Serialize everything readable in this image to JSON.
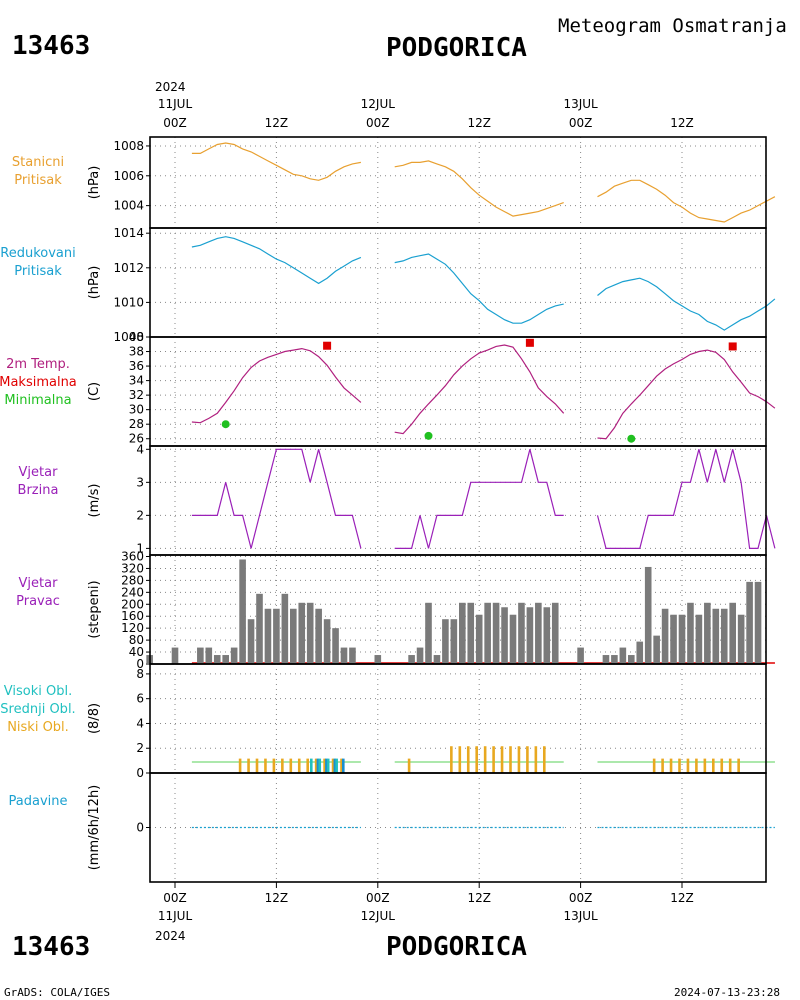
{
  "header": {
    "station_id": "13463",
    "station_name": "PODGORICA",
    "product": "Meteogram Osmatranja"
  },
  "top_axis": {
    "year": "2024",
    "labels": [
      {
        "top": "11JUL",
        "bottom": "00Z"
      },
      {
        "top": "",
        "bottom": "12Z"
      },
      {
        "top": "12JUL",
        "bottom": "00Z"
      },
      {
        "top": "",
        "bottom": "12Z"
      },
      {
        "top": "13JUL",
        "bottom": "00Z"
      },
      {
        "top": "",
        "bottom": "12Z"
      }
    ]
  },
  "bottom_axis": {
    "year": "2024",
    "labels": [
      {
        "top": "00Z",
        "bottom": "11JUL"
      },
      {
        "top": "12Z",
        "bottom": ""
      },
      {
        "top": "00Z",
        "bottom": "12JUL"
      },
      {
        "top": "12Z",
        "bottom": ""
      },
      {
        "top": "00Z",
        "bottom": "13JUL"
      },
      {
        "top": "12Z",
        "bottom": ""
      }
    ]
  },
  "footer": {
    "station_id": "13463",
    "station_name": "PODGORICA",
    "credit": "GrADS: COLA/IGES",
    "timestamp": "2024-07-13-23:28"
  },
  "colors": {
    "station_pressure": "#e8a030",
    "reduced_pressure": "#1aa0d0",
    "temperature": "#b0207f",
    "tmax": "#e00000",
    "tmin": "#20c020",
    "wind": "#9a20b8",
    "wind_bar": "#7a7a7a",
    "high_cloud": "#20c0c0",
    "mid_cloud": "#1a8fd0",
    "low_cloud": "#e8a820",
    "precip": "#1aa0d0"
  },
  "chart_data": [
    {
      "type": "line",
      "panel": "station_pressure",
      "label_lines": [
        "Stanicni",
        "Pritisak"
      ],
      "ylabel": "(hPa)",
      "ylim": [
        1002.5,
        1008.6
      ],
      "yticks": [
        "1004",
        "1006",
        "1008"
      ],
      "x_unit": "hours since 11JUL 00Z",
      "series": [
        {
          "x": [
            2,
            3,
            4,
            5,
            6,
            7,
            8,
            9,
            10,
            11,
            12,
            13,
            14,
            15,
            16,
            17,
            18,
            19,
            20,
            21,
            22
          ],
          "y": [
            1007.5,
            1007.5,
            1007.8,
            1008.1,
            1008.2,
            1008.1,
            1007.8,
            1007.6,
            1007.3,
            1007.0,
            1006.7,
            1006.4,
            1006.1,
            1006.0,
            1005.8,
            1005.7,
            1005.9,
            1006.3,
            1006.6,
            1006.8,
            1006.9
          ]
        },
        {
          "x": [
            26,
            27,
            28,
            29,
            30,
            31,
            32,
            33,
            34,
            35,
            36,
            37,
            38,
            39,
            40,
            41,
            42,
            43,
            44,
            45,
            46
          ],
          "y": [
            1006.6,
            1006.7,
            1006.9,
            1006.9,
            1007.0,
            1006.8,
            1006.6,
            1006.3,
            1005.8,
            1005.2,
            1004.7,
            1004.3,
            1003.9,
            1003.6,
            1003.3,
            1003.4,
            1003.5,
            1003.6,
            1003.8,
            1004.0,
            1004.2
          ]
        },
        {
          "x": [
            50,
            51,
            52,
            53,
            54,
            55,
            56,
            57,
            58,
            59,
            60,
            61,
            62,
            63,
            64,
            65,
            66,
            67,
            68,
            69,
            70,
            71
          ],
          "y": [
            1004.6,
            1004.9,
            1005.3,
            1005.5,
            1005.7,
            1005.7,
            1005.4,
            1005.1,
            1004.7,
            1004.2,
            1003.9,
            1003.5,
            1003.2,
            1003.1,
            1003.0,
            1002.9,
            1003.2,
            1003.5,
            1003.7,
            1004.0,
            1004.3,
            1004.6
          ]
        }
      ]
    },
    {
      "type": "line",
      "panel": "reduced_pressure",
      "label_lines": [
        "Redukovani",
        "Pritisak"
      ],
      "ylabel": "(hPa)",
      "ylim": [
        1008.0,
        1014.3
      ],
      "yticks": [
        "1008",
        "1010",
        "1012",
        "1014"
      ],
      "x_unit": "hours since 11JUL 00Z",
      "series": [
        {
          "x": [
            2,
            3,
            4,
            5,
            6,
            7,
            8,
            9,
            10,
            11,
            12,
            13,
            14,
            15,
            16,
            17,
            18,
            19,
            20,
            21,
            22
          ],
          "y": [
            1013.2,
            1013.3,
            1013.5,
            1013.7,
            1013.8,
            1013.7,
            1013.5,
            1013.3,
            1013.1,
            1012.8,
            1012.5,
            1012.3,
            1012.0,
            1011.7,
            1011.4,
            1011.1,
            1011.4,
            1011.8,
            1012.1,
            1012.4,
            1012.6
          ]
        },
        {
          "x": [
            26,
            27,
            28,
            29,
            30,
            31,
            32,
            33,
            34,
            35,
            36,
            37,
            38,
            39,
            40,
            41,
            42,
            43,
            44,
            45,
            46
          ],
          "y": [
            1012.3,
            1012.4,
            1012.6,
            1012.7,
            1012.8,
            1012.5,
            1012.2,
            1011.7,
            1011.1,
            1010.5,
            1010.1,
            1009.6,
            1009.3,
            1009.0,
            1008.8,
            1008.8,
            1009.0,
            1009.3,
            1009.6,
            1009.8,
            1009.9
          ]
        },
        {
          "x": [
            50,
            51,
            52,
            53,
            54,
            55,
            56,
            57,
            58,
            59,
            60,
            61,
            62,
            63,
            64,
            65,
            66,
            67,
            68,
            69,
            70,
            71
          ],
          "y": [
            1010.4,
            1010.8,
            1011.0,
            1011.2,
            1011.3,
            1011.4,
            1011.2,
            1010.9,
            1010.5,
            1010.1,
            1009.8,
            1009.5,
            1009.3,
            1008.9,
            1008.7,
            1008.4,
            1008.7,
            1009.0,
            1009.2,
            1009.5,
            1009.8,
            1010.2
          ]
        }
      ]
    },
    {
      "type": "line",
      "panel": "temperature",
      "label_lines": [
        "2m Temp.",
        "Maksimalna",
        "Minimalna"
      ],
      "ylabel": "(C)",
      "ylim": [
        25.0,
        40.0
      ],
      "yticks": [
        "26",
        "28",
        "30",
        "32",
        "34",
        "36",
        "38",
        "40"
      ],
      "x_unit": "hours since 11JUL 00Z",
      "series": [
        {
          "name": "2m Temp.",
          "x": [
            2,
            3,
            4,
            5,
            6,
            7,
            8,
            9,
            10,
            11,
            12,
            13,
            14,
            15,
            16,
            17,
            18,
            19,
            20,
            21,
            22
          ],
          "y": [
            28.3,
            28.2,
            28.8,
            29.5,
            31.0,
            32.6,
            34.4,
            35.8,
            36.7,
            37.2,
            37.6,
            38.0,
            38.2,
            38.4,
            38.1,
            37.3,
            36.1,
            34.5,
            33.0,
            32.0,
            31.0
          ]
        },
        {
          "name": "2m Temp.",
          "x": [
            26,
            27,
            28,
            29,
            30,
            31,
            32,
            33,
            34,
            35,
            36,
            37,
            38,
            39,
            40,
            41,
            42,
            43,
            44,
            45,
            46
          ],
          "y": [
            26.9,
            26.7,
            28.0,
            29.5,
            30.8,
            32.0,
            33.3,
            34.8,
            36.0,
            37.0,
            37.8,
            38.2,
            38.7,
            38.9,
            38.6,
            37.0,
            35.2,
            33.0,
            31.8,
            30.8,
            29.5
          ]
        },
        {
          "name": "2m Temp.",
          "x": [
            50,
            51,
            52,
            53,
            54,
            55,
            56,
            57,
            58,
            59,
            60,
            61,
            62,
            63,
            64,
            65,
            66,
            67,
            68,
            69,
            70,
            71
          ],
          "y": [
            26.1,
            26.0,
            27.5,
            29.5,
            30.8,
            32.0,
            33.3,
            34.6,
            35.6,
            36.3,
            36.9,
            37.6,
            38.0,
            38.2,
            37.9,
            36.9,
            35.2,
            33.8,
            32.3,
            31.8,
            31.1,
            30.2
          ]
        },
        {
          "name": "Maksimalna",
          "marker": "square",
          "x": [
            18,
            42,
            66
          ],
          "y": [
            38.8,
            39.2,
            38.7
          ]
        },
        {
          "name": "Minimalna",
          "marker": "circle",
          "x": [
            6,
            30,
            54
          ],
          "y": [
            28.0,
            26.4,
            26.0
          ]
        }
      ]
    },
    {
      "type": "line",
      "panel": "wind_speed",
      "label_lines": [
        "Vjetar",
        "Brzina"
      ],
      "ylabel": "(m/s)",
      "ylim": [
        0.8,
        4.1
      ],
      "yticks": [
        "1",
        "2",
        "3",
        "4"
      ],
      "x_unit": "hours since 11JUL 00Z",
      "series": [
        {
          "x": [
            2,
            3,
            4,
            5,
            6,
            7,
            8,
            9,
            10,
            11,
            12,
            13,
            14,
            15,
            16,
            17,
            18,
            19,
            20,
            21,
            22
          ],
          "y": [
            2,
            2,
            2,
            2,
            3,
            2,
            2,
            1,
            2,
            3,
            4,
            4,
            4,
            4,
            3,
            4,
            3,
            2,
            2,
            2,
            1
          ]
        },
        {
          "x": [
            26,
            27,
            28,
            29,
            30,
            31,
            32,
            33,
            34,
            35,
            36,
            37,
            38,
            39,
            40,
            41,
            42,
            43,
            44,
            45,
            46
          ],
          "y": [
            1,
            1,
            1,
            2,
            1,
            2,
            2,
            2,
            2,
            3,
            3,
            3,
            3,
            3,
            3,
            3,
            4,
            3,
            3,
            2,
            2
          ]
        },
        {
          "x": [
            50,
            51,
            52,
            53,
            54,
            55,
            56,
            57,
            58,
            59,
            60,
            61,
            62,
            63,
            64,
            65,
            66,
            67,
            68,
            69,
            70,
            71
          ],
          "y": [
            2,
            1,
            1,
            1,
            1,
            1,
            2,
            2,
            2,
            2,
            3,
            3,
            4,
            3,
            4,
            3,
            4,
            3,
            1,
            1,
            2,
            1
          ]
        }
      ]
    },
    {
      "type": "bar",
      "panel": "wind_direction",
      "label_lines": [
        "Vjetar",
        "Pravac"
      ],
      "ylabel": "(stepeni)",
      "ylim": [
        0,
        365
      ],
      "yticks": [
        "0",
        "40",
        "80",
        "120",
        "160",
        "200",
        "240",
        "280",
        "320",
        "360"
      ],
      "x_unit": "hours since 11JUL 00Z",
      "x": [
        -3,
        0,
        3,
        4,
        5,
        6,
        7,
        8,
        9,
        10,
        11,
        12,
        13,
        14,
        15,
        16,
        17,
        18,
        19,
        20,
        21,
        22,
        24,
        27,
        28,
        29,
        30,
        31,
        32,
        33,
        34,
        35,
        36,
        37,
        38,
        39,
        40,
        41,
        42,
        43,
        44,
        45,
        46,
        48,
        51,
        52,
        53,
        54,
        55,
        56,
        57,
        58,
        59,
        60,
        61,
        62,
        63,
        64,
        65,
        66,
        67,
        68,
        69,
        70,
        71
      ],
      "values": [
        30,
        55,
        55,
        55,
        30,
        30,
        55,
        350,
        150,
        235,
        185,
        185,
        235,
        185,
        205,
        205,
        185,
        150,
        120,
        55,
        55,
        0,
        30,
        0,
        30,
        55,
        205,
        30,
        150,
        150,
        205,
        205,
        165,
        205,
        205,
        190,
        165,
        205,
        190,
        205,
        190,
        205,
        0,
        55,
        30,
        30,
        55,
        30,
        75,
        325,
        95,
        185,
        165,
        165,
        205,
        165,
        205,
        185,
        185,
        205,
        165,
        275,
        275,
        0,
        0
      ]
    },
    {
      "type": "bar",
      "panel": "clouds",
      "label_lines": [
        "Visoki Obl.",
        "Srednji Obl.",
        "Niski Obl."
      ],
      "ylabel": "(8/8)",
      "ylim": [
        0,
        8.8
      ],
      "yticks": [
        "0",
        "2",
        "4",
        "6",
        "8"
      ],
      "x_unit": "hours since 11JUL 00Z",
      "x": [
        8,
        9,
        10,
        11,
        12,
        13,
        14,
        15,
        16,
        17,
        18,
        19,
        20,
        28,
        33,
        34,
        35,
        36,
        37,
        38,
        39,
        40,
        41,
        42,
        43,
        44,
        57,
        58,
        59,
        60,
        61,
        62,
        63,
        64,
        65,
        66,
        67
      ],
      "series": [
        {
          "name": "Niski Obl.",
          "values": [
            1,
            1,
            1,
            1,
            1,
            1,
            1,
            1,
            1,
            1,
            1,
            1,
            1,
            1,
            2,
            2,
            2,
            2,
            2,
            2,
            2,
            2,
            2,
            2,
            2,
            2,
            1,
            1,
            1,
            1,
            1,
            1,
            1,
            1,
            1,
            1,
            1
          ]
        },
        {
          "name": "Srednji Obl.",
          "values": [
            0,
            0,
            0,
            0,
            0,
            0,
            0,
            0,
            0,
            1,
            1,
            1,
            1,
            0,
            0,
            0,
            0,
            0,
            0,
            0,
            0,
            0,
            0,
            0,
            0,
            0,
            0,
            0,
            0,
            0,
            0,
            0,
            0,
            0,
            0,
            0,
            0
          ]
        },
        {
          "name": "Visoki Obl.",
          "values": [
            0,
            0,
            0,
            0,
            0,
            0,
            0,
            0,
            1,
            1,
            1,
            1,
            0,
            0,
            0,
            0,
            0,
            0,
            0,
            0,
            0,
            0,
            0,
            0,
            0,
            0,
            0,
            0,
            0,
            0,
            0,
            0,
            0,
            0,
            0,
            0,
            0
          ]
        }
      ]
    },
    {
      "type": "line",
      "panel": "precipitation",
      "label_lines": [
        "Padavine"
      ],
      "ylabel": "(mm/6h/12h)",
      "ylim": [
        -2,
        2
      ],
      "yticks": [
        "0"
      ],
      "x_unit": "hours since 11JUL 00Z",
      "series": [
        {
          "x": [
            2,
            22
          ],
          "y": [
            0,
            0
          ]
        },
        {
          "x": [
            26,
            46
          ],
          "y": [
            0,
            0
          ]
        },
        {
          "x": [
            50,
            71
          ],
          "y": [
            0,
            0
          ]
        }
      ]
    }
  ]
}
